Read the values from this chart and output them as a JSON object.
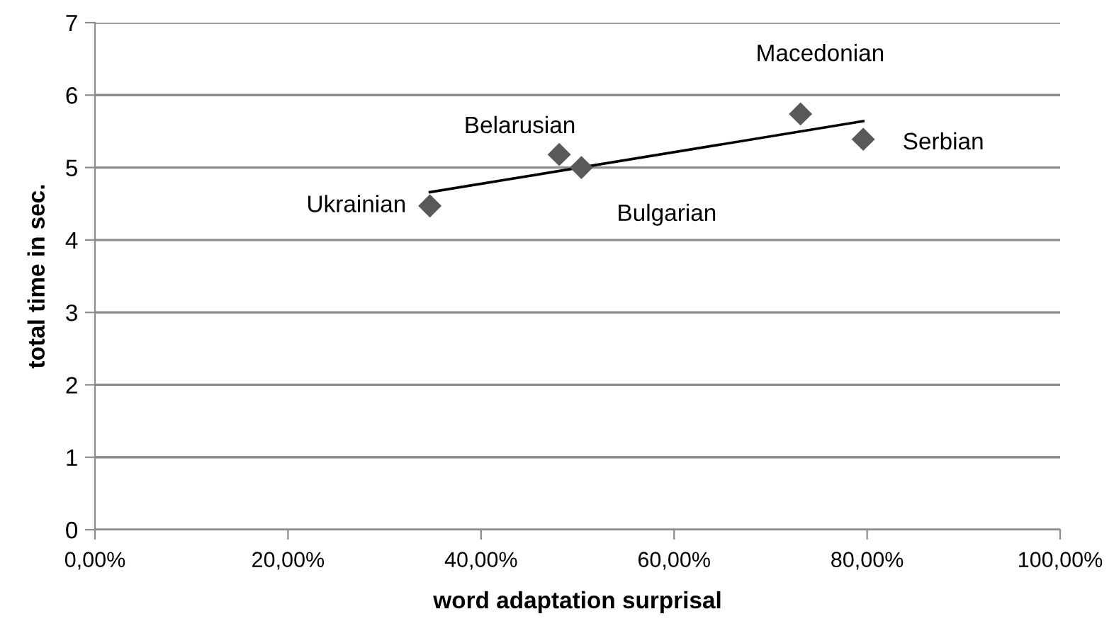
{
  "chart_data": {
    "type": "scatter",
    "xlabel": "word adaptation surprisal",
    "ylabel": "total time in sec.",
    "xlim": [
      0,
      1
    ],
    "xticks": [
      {
        "value": 0,
        "label": "0,00%"
      },
      {
        "value": 0.2,
        "label": "20,00%"
      },
      {
        "value": 0.4,
        "label": "40,00%"
      },
      {
        "value": 0.6,
        "label": "60,00%"
      },
      {
        "value": 0.8,
        "label": "80,00%"
      },
      {
        "value": 1,
        "label": "100,00%"
      }
    ],
    "ylim": [
      0,
      7
    ],
    "yticks": [
      0,
      1,
      2,
      3,
      4,
      5,
      6,
      7
    ],
    "grid": "y",
    "series": [
      {
        "color": "#595959",
        "marker": "diamond",
        "x": [
          0.347,
          0.481,
          0.504,
          0.731,
          0.796
        ],
        "values": [
          4.47,
          5.18,
          5.0,
          5.74,
          5.39
        ]
      },
      {
        "type": "line",
        "color": "#000000",
        "marker": "none",
        "line_style": "solid",
        "x": [
          0.347,
          0.796
        ],
        "values": [
          4.66,
          5.64
        ]
      }
    ],
    "annotations": [
      {
        "text": "Ukrainian",
        "x": 0.347,
        "y": 4.47
      },
      {
        "text": "Belarusian",
        "x": 0.481,
        "y": 5.18
      },
      {
        "text": "Bulgarian",
        "x": 0.504,
        "y": 5.0
      },
      {
        "text": "Macedonian",
        "x": 0.731,
        "y": 5.74
      },
      {
        "text": "Serbian",
        "x": 0.796,
        "y": 5.39
      }
    ]
  }
}
